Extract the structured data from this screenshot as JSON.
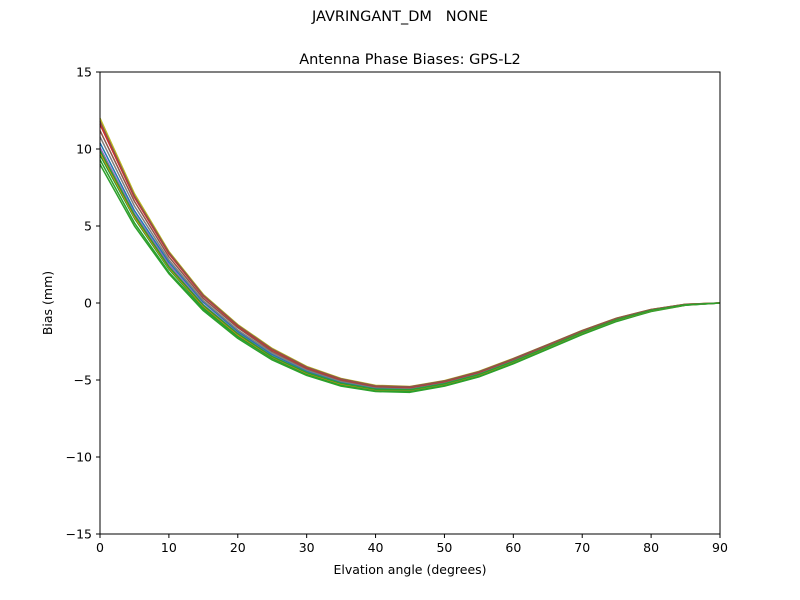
{
  "figure": {
    "suptitle": "JAVRINGANT_DM   NONE"
  },
  "chart_data": {
    "type": "line",
    "title": "Antenna Phase Biases: GPS-L2",
    "xlabel": "Elvation angle (degrees)",
    "ylabel": "Bias (mm)",
    "xlim": [
      0,
      90
    ],
    "ylim": [
      -15,
      15
    ],
    "xticks": [
      0,
      10,
      20,
      30,
      40,
      50,
      60,
      70,
      80,
      90
    ],
    "yticks": [
      -15,
      -10,
      -5,
      0,
      5,
      10,
      15
    ],
    "ytick_labels": [
      "−15",
      "−10",
      "−5",
      "0",
      "5",
      "10",
      "15"
    ],
    "grid": false,
    "legend": "none",
    "x": [
      0,
      5,
      10,
      15,
      20,
      25,
      30,
      35,
      40,
      45,
      50,
      55,
      60,
      65,
      70,
      75,
      80,
      85,
      90
    ],
    "series": [
      {
        "color": "#2ca02c",
        "values": [
          9.0,
          5.0,
          1.9,
          -0.5,
          -2.3,
          -3.7,
          -4.7,
          -5.4,
          -5.75,
          -5.8,
          -5.4,
          -4.8,
          -3.95,
          -3.0,
          -2.05,
          -1.2,
          -0.55,
          -0.15,
          0.0
        ]
      },
      {
        "color": "#2ca02c",
        "values": [
          9.3,
          5.2,
          2.0,
          -0.4,
          -2.2,
          -3.6,
          -4.65,
          -5.35,
          -5.7,
          -5.75,
          -5.35,
          -4.75,
          -3.9,
          -2.95,
          -2.0,
          -1.15,
          -0.52,
          -0.14,
          0.0
        ]
      },
      {
        "color": "#2ca02c",
        "values": [
          9.6,
          5.5,
          2.2,
          -0.3,
          -2.1,
          -3.55,
          -4.6,
          -5.3,
          -5.65,
          -5.7,
          -5.3,
          -4.7,
          -3.85,
          -2.9,
          -1.95,
          -1.12,
          -0.5,
          -0.13,
          0.0
        ]
      },
      {
        "color": "#ff7f0e",
        "values": [
          9.8,
          5.6,
          2.3,
          -0.2,
          -2.05,
          -3.5,
          -4.55,
          -5.25,
          -5.62,
          -5.66,
          -5.27,
          -4.67,
          -3.82,
          -2.88,
          -1.93,
          -1.1,
          -0.49,
          -0.12,
          0.0
        ]
      },
      {
        "color": "#9467bd",
        "values": [
          10.1,
          5.8,
          2.5,
          -0.1,
          -1.95,
          -3.45,
          -4.5,
          -5.2,
          -5.58,
          -5.62,
          -5.23,
          -4.63,
          -3.78,
          -2.85,
          -1.9,
          -1.08,
          -0.47,
          -0.11,
          0.0
        ]
      },
      {
        "color": "#1f77b4",
        "values": [
          10.4,
          6.0,
          2.65,
          0.05,
          -1.85,
          -3.35,
          -4.42,
          -5.14,
          -5.53,
          -5.58,
          -5.2,
          -4.6,
          -3.75,
          -2.82,
          -1.88,
          -1.06,
          -0.46,
          -0.1,
          0.0
        ]
      },
      {
        "color": "#7f7f7f",
        "values": [
          10.8,
          6.3,
          2.8,
          0.15,
          -1.75,
          -3.25,
          -4.35,
          -5.08,
          -5.48,
          -5.54,
          -5.15,
          -4.55,
          -3.7,
          -2.78,
          -1.85,
          -1.04,
          -0.45,
          -0.1,
          0.0
        ]
      },
      {
        "color": "#8c564b",
        "values": [
          11.2,
          6.6,
          3.0,
          0.3,
          -1.6,
          -3.15,
          -4.27,
          -5.02,
          -5.44,
          -5.5,
          -5.12,
          -4.52,
          -3.67,
          -2.75,
          -1.82,
          -1.02,
          -0.44,
          -0.09,
          0.0
        ]
      },
      {
        "color": "#d62728",
        "values": [
          11.6,
          6.85,
          3.2,
          0.45,
          -1.5,
          -3.05,
          -4.2,
          -4.96,
          -5.4,
          -5.46,
          -5.08,
          -4.48,
          -3.63,
          -2.72,
          -1.8,
          -1.0,
          -0.43,
          -0.09,
          0.0
        ]
      },
      {
        "color": "#bcbd22",
        "values": [
          12.0,
          7.1,
          3.35,
          0.55,
          -1.4,
          -2.95,
          -4.12,
          -4.9,
          -5.35,
          -5.42,
          -5.04,
          -4.44,
          -3.6,
          -2.7,
          -1.78,
          -0.98,
          -0.42,
          -0.08,
          0.0
        ]
      },
      {
        "color": "#8c564b",
        "values": [
          11.8,
          6.95,
          3.28,
          0.5,
          -1.45,
          -3.0,
          -4.16,
          -4.93,
          -5.38,
          -5.44,
          -5.06,
          -4.46,
          -3.62,
          -2.71,
          -1.79,
          -0.99,
          -0.42,
          -0.08,
          0.0
        ]
      },
      {
        "color": "#2ca02c",
        "values": [
          9.9,
          5.7,
          2.35,
          -0.15,
          -2.0,
          -3.48,
          -4.52,
          -5.22,
          -5.6,
          -5.64,
          -5.25,
          -4.65,
          -3.8,
          -2.86,
          -1.91,
          -1.09,
          -0.48,
          -0.12,
          0.0
        ]
      }
    ]
  }
}
